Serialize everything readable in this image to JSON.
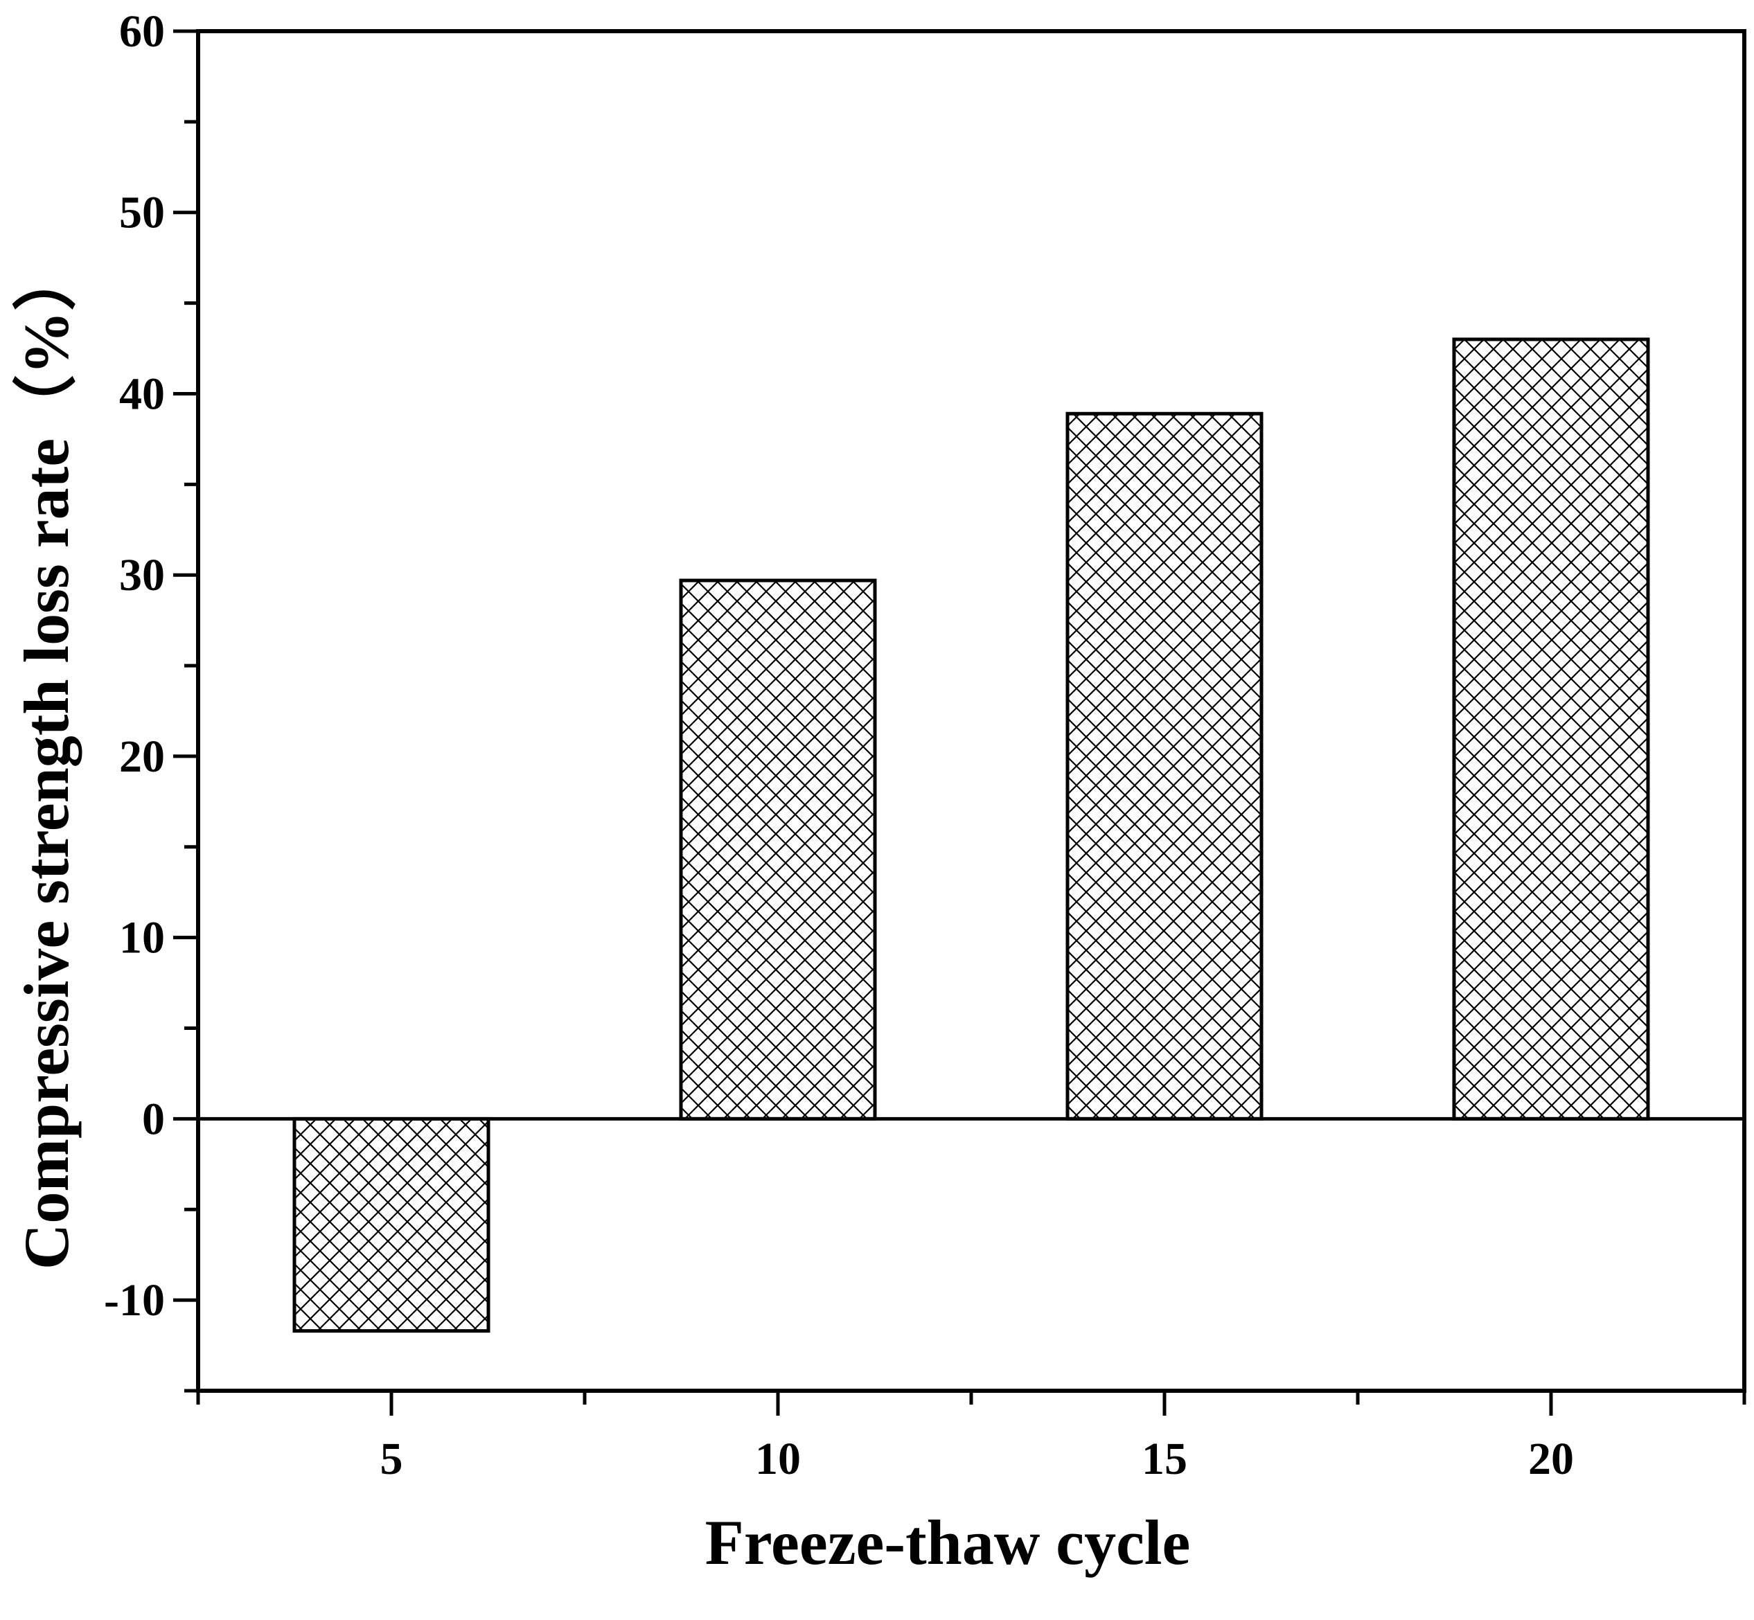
{
  "chart_data": {
    "type": "bar",
    "categories": [
      "5",
      "10",
      "15",
      "20"
    ],
    "values": [
      -11.7,
      29.7,
      38.9,
      43.0
    ],
    "xlabel": "Freeze-thaw cycle",
    "ylabel": "Compressive strength loss rate（%）",
    "ylim": [
      -15,
      60
    ],
    "yticks": [
      60,
      50,
      40,
      30,
      20,
      10,
      0,
      -10
    ],
    "bar_fill": "crosshatch",
    "bar_color": "#000000",
    "background": "#ffffff",
    "grid": false,
    "zero_line": true
  }
}
